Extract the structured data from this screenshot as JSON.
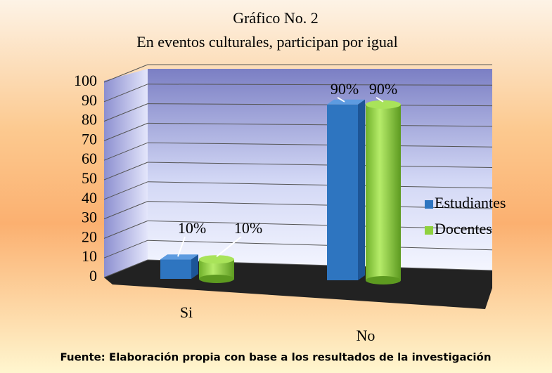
{
  "chart_data": {
    "type": "bar3d",
    "title": "Gráfico No. 2",
    "subtitle": "En eventos culturales, participan por igual",
    "note": "Fuente: Elaboración propia con base a los resultados de la investigación",
    "categories": [
      "Si",
      "No"
    ],
    "series": [
      {
        "name": "Estudiantes",
        "color": "#2e75c0",
        "shape": "box",
        "values": [
          10,
          90
        ],
        "value_labels": [
          "10%",
          "90%"
        ]
      },
      {
        "name": "Docentes",
        "color": "#8fd13f",
        "shape": "cylinder",
        "values": [
          10,
          90
        ],
        "value_labels": [
          "10%",
          "90%"
        ]
      }
    ],
    "ylim": [
      0,
      100
    ],
    "yticks": [
      0,
      10,
      20,
      30,
      40,
      50,
      60,
      70,
      80,
      90,
      100
    ],
    "grid": true,
    "legend": "right"
  }
}
